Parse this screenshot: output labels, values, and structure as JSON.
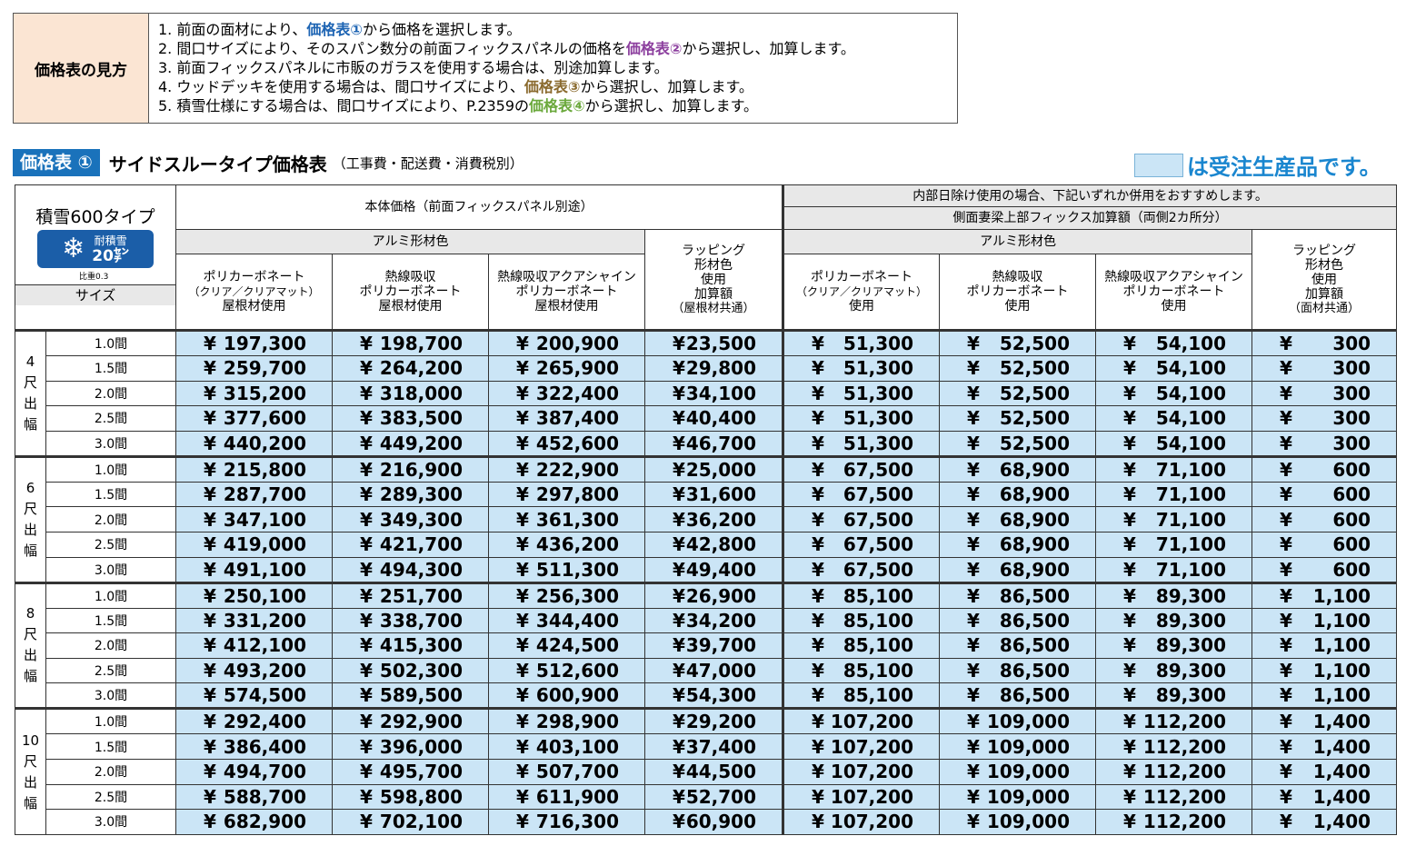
{
  "guide": {
    "label": "価格表の見方",
    "lines": [
      {
        "pre": "1. 前面の面材により、",
        "key": "価格表①",
        "post": "から価格を選択します。"
      },
      {
        "pre": "2. 間口サイズにより、そのスパン数分の前面フィックスパネルの価格を",
        "key": "価格表②",
        "post": "から選択し、加算します。"
      },
      {
        "pre": "3. 前面フィックスパネルに市販のガラスを使用する場合は、別途加算します。",
        "key": "",
        "post": ""
      },
      {
        "pre": "4. ウッドデッキを使用する場合は、間口サイズにより、",
        "key": "価格表③",
        "post": "から選択し、加算します。"
      },
      {
        "pre": "5. 積雪仕様にする場合は、間口サイズにより、P.2359の",
        "key": "価格表④",
        "post": "から選択し、加算します。"
      }
    ]
  },
  "title": {
    "badge": "価格表 ①",
    "main": "サイドスルータイプ価格表",
    "note": "（工事費・配送費・消費税別）"
  },
  "legend": {
    "text": "は受注生産品です。",
    "swatch_color": "#cbe5f6",
    "text_color": "#1a86cf"
  },
  "corner": {
    "type_label": "積雪600タイプ",
    "badge_line1": "耐積雪",
    "badge_line2": "20㌢",
    "badge_icon": "snowflake-icon",
    "specific_gravity": "比重0.3",
    "size_label": "サイズ"
  },
  "header": {
    "main_group": "本体価格（前面フィックスパネル別途）",
    "side_group_line1": "内部日除け使用の場合、下記いずれか併用をおすすめします。",
    "side_group_line2": "側面妻梁上部フィックス加算額（両側2カ所分）",
    "alumi": "アルミ形材色",
    "alumi2": "アルミ形材色",
    "wrap_main": [
      "ラッピング",
      "形材色",
      "使用",
      "加算額",
      "（屋根材共通）"
    ],
    "wrap_side": [
      "ラッピング",
      "形材色",
      "使用",
      "加算額",
      "（面材共通）"
    ],
    "cols_main": [
      {
        "l1": "ポリカーボネート",
        "l2": "（クリア／クリアマット）",
        "l3": "屋根材使用"
      },
      {
        "l1": "熱線吸収",
        "l2": "ポリカーボネート",
        "l3": "屋根材使用"
      },
      {
        "l1": "熱線吸収アクアシャイン",
        "l2": "ポリカーボネート",
        "l3": "屋根材使用"
      }
    ],
    "cols_side": [
      {
        "l1": "ポリカーボネート",
        "l2": "（クリア／クリアマット）",
        "l3": "使用"
      },
      {
        "l1": "熱線吸収",
        "l2": "ポリカーボネート",
        "l3": "使用"
      },
      {
        "l1": "熱線吸収アクアシャイン",
        "l2": "ポリカーボネート",
        "l3": "使用"
      }
    ]
  },
  "currency": "¥",
  "groups": [
    {
      "label": [
        "4",
        "尺",
        "出",
        "幅"
      ],
      "rows": [
        {
          "size": "1.0間",
          "v": [
            "197,300",
            "198,700",
            "200,900",
            "23,500",
            "51,300",
            "52,500",
            "54,100",
            "300"
          ]
        },
        {
          "size": "1.5間",
          "v": [
            "259,700",
            "264,200",
            "265,900",
            "29,800",
            "51,300",
            "52,500",
            "54,100",
            "300"
          ]
        },
        {
          "size": "2.0間",
          "v": [
            "315,200",
            "318,000",
            "322,400",
            "34,100",
            "51,300",
            "52,500",
            "54,100",
            "300"
          ]
        },
        {
          "size": "2.5間",
          "v": [
            "377,600",
            "383,500",
            "387,400",
            "40,400",
            "51,300",
            "52,500",
            "54,100",
            "300"
          ]
        },
        {
          "size": "3.0間",
          "v": [
            "440,200",
            "449,200",
            "452,600",
            "46,700",
            "51,300",
            "52,500",
            "54,100",
            "300"
          ]
        }
      ]
    },
    {
      "label": [
        "6",
        "尺",
        "出",
        "幅"
      ],
      "rows": [
        {
          "size": "1.0間",
          "v": [
            "215,800",
            "216,900",
            "222,900",
            "25,000",
            "67,500",
            "68,900",
            "71,100",
            "600"
          ]
        },
        {
          "size": "1.5間",
          "v": [
            "287,700",
            "289,300",
            "297,800",
            "31,600",
            "67,500",
            "68,900",
            "71,100",
            "600"
          ]
        },
        {
          "size": "2.0間",
          "v": [
            "347,100",
            "349,300",
            "361,300",
            "36,200",
            "67,500",
            "68,900",
            "71,100",
            "600"
          ]
        },
        {
          "size": "2.5間",
          "v": [
            "419,000",
            "421,700",
            "436,200",
            "42,800",
            "67,500",
            "68,900",
            "71,100",
            "600"
          ]
        },
        {
          "size": "3.0間",
          "v": [
            "491,100",
            "494,300",
            "511,300",
            "49,400",
            "67,500",
            "68,900",
            "71,100",
            "600"
          ]
        }
      ]
    },
    {
      "label": [
        "8",
        "尺",
        "出",
        "幅"
      ],
      "rows": [
        {
          "size": "1.0間",
          "v": [
            "250,100",
            "251,700",
            "256,300",
            "26,900",
            "85,100",
            "86,500",
            "89,300",
            "1,100"
          ]
        },
        {
          "size": "1.5間",
          "v": [
            "331,200",
            "338,700",
            "344,400",
            "34,200",
            "85,100",
            "86,500",
            "89,300",
            "1,100"
          ]
        },
        {
          "size": "2.0間",
          "v": [
            "412,100",
            "415,300",
            "424,500",
            "39,700",
            "85,100",
            "86,500",
            "89,300",
            "1,100"
          ]
        },
        {
          "size": "2.5間",
          "v": [
            "493,200",
            "502,300",
            "512,600",
            "47,000",
            "85,100",
            "86,500",
            "89,300",
            "1,100"
          ]
        },
        {
          "size": "3.0間",
          "v": [
            "574,500",
            "589,500",
            "600,900",
            "54,300",
            "85,100",
            "86,500",
            "89,300",
            "1,100"
          ]
        }
      ]
    },
    {
      "label": [
        "10",
        "尺",
        "出",
        "幅"
      ],
      "rows": [
        {
          "size": "1.0間",
          "v": [
            "292,400",
            "292,900",
            "298,900",
            "29,200",
            "107,200",
            "109,000",
            "112,200",
            "1,400"
          ]
        },
        {
          "size": "1.5間",
          "v": [
            "386,400",
            "396,000",
            "403,100",
            "37,400",
            "107,200",
            "109,000",
            "112,200",
            "1,400"
          ]
        },
        {
          "size": "2.0間",
          "v": [
            "494,700",
            "495,700",
            "507,700",
            "44,500",
            "107,200",
            "109,000",
            "112,200",
            "1,400"
          ]
        },
        {
          "size": "2.5間",
          "v": [
            "588,700",
            "598,800",
            "611,900",
            "52,700",
            "107,200",
            "109,000",
            "112,200",
            "1,400"
          ]
        },
        {
          "size": "3.0間",
          "v": [
            "682,900",
            "702,100",
            "716,300",
            "60,900",
            "107,200",
            "109,000",
            "112,200",
            "1,400"
          ]
        }
      ]
    }
  ]
}
